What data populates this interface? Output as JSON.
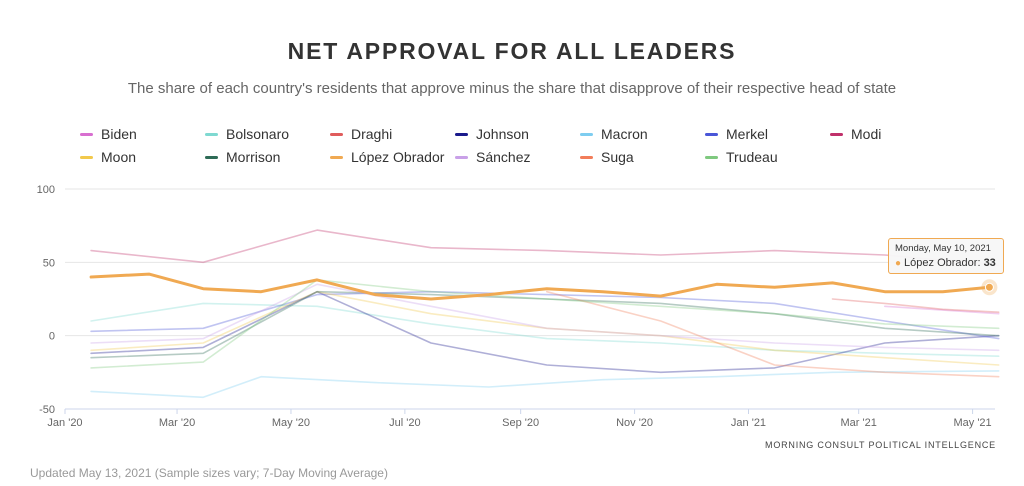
{
  "chart_data": {
    "type": "line",
    "title": "NET APPROVAL FOR ALL LEADERS",
    "subtitle": "The share of each country's residents that approve minus the share that disapprove of their respective head of state",
    "x_ticks": [
      "Jan '20",
      "Mar '20",
      "May '20",
      "Jul '20",
      "Sep '20",
      "Nov '20",
      "Jan '21",
      "Mar '21",
      "May '21"
    ],
    "x_range": [
      "2020-01-01",
      "2021-05-13"
    ],
    "y_ticks": [
      100,
      50,
      0,
      -50
    ],
    "ylim": [
      -50,
      100
    ],
    "grid": "horizontal",
    "legend_position": "top",
    "series": [
      {
        "name": "Biden",
        "color": "#d86fd0",
        "x": [
          "2020-01",
          "2020-04",
          "2020-07",
          "2020-10",
          "2021-01",
          "2021-03",
          "2021-05"
        ],
        "values": [
          null,
          null,
          null,
          null,
          null,
          20,
          15
        ]
      },
      {
        "name": "Bolsonaro",
        "color": "#7fd9d1",
        "x": [
          "2020-01",
          "2020-03",
          "2020-05",
          "2020-07",
          "2020-09",
          "2020-11",
          "2021-01",
          "2021-03",
          "2021-05"
        ],
        "values": [
          10,
          22,
          20,
          8,
          -2,
          -5,
          -10,
          -12,
          -14
        ]
      },
      {
        "name": "Draghi",
        "color": "#e05c5c",
        "x": [
          "2021-02",
          "2021-03",
          "2021-04",
          "2021-05"
        ],
        "values": [
          25,
          22,
          18,
          16
        ]
      },
      {
        "name": "Johnson",
        "color": "#1a1a8c",
        "x": [
          "2020-01",
          "2020-03",
          "2020-05",
          "2020-07",
          "2020-09",
          "2020-11",
          "2021-01",
          "2021-03",
          "2021-05"
        ],
        "values": [
          -12,
          -8,
          30,
          -5,
          -20,
          -25,
          -22,
          -5,
          0
        ]
      },
      {
        "name": "Macron",
        "color": "#7ecdf0",
        "x": [
          "2020-01",
          "2020-03",
          "2020-04",
          "2020-06",
          "2020-08",
          "2020-10",
          "2020-12",
          "2021-02",
          "2021-05"
        ],
        "values": [
          -38,
          -42,
          -28,
          -32,
          -35,
          -30,
          -28,
          -25,
          -24
        ]
      },
      {
        "name": "Merkel",
        "color": "#4a56d8",
        "x": [
          "2020-01",
          "2020-03",
          "2020-05",
          "2020-07",
          "2020-09",
          "2020-11",
          "2021-01",
          "2021-03",
          "2021-05"
        ],
        "values": [
          3,
          5,
          28,
          30,
          28,
          26,
          22,
          10,
          -2
        ]
      },
      {
        "name": "Modi",
        "color": "#c0306a",
        "x": [
          "2020-01",
          "2020-03",
          "2020-05",
          "2020-07",
          "2020-09",
          "2020-11",
          "2021-01",
          "2021-03",
          "2021-05"
        ],
        "values": [
          58,
          50,
          72,
          60,
          58,
          55,
          58,
          55,
          48
        ]
      },
      {
        "name": "Moon",
        "color": "#f2c94c",
        "x": [
          "2020-01",
          "2020-03",
          "2020-05",
          "2020-07",
          "2020-09",
          "2020-11",
          "2021-01",
          "2021-03",
          "2021-05"
        ],
        "values": [
          -10,
          -5,
          30,
          15,
          5,
          0,
          -10,
          -15,
          -20
        ]
      },
      {
        "name": "Morrison",
        "color": "#2e6b56",
        "x": [
          "2020-01",
          "2020-03",
          "2020-05",
          "2020-07",
          "2020-09",
          "2020-11",
          "2021-01",
          "2021-03",
          "2021-05"
        ],
        "values": [
          -15,
          -12,
          30,
          28,
          25,
          22,
          15,
          5,
          0
        ]
      },
      {
        "name": "López Obrador",
        "color": "#f0a952",
        "x": [
          "2020-01",
          "2020-02",
          "2020-03",
          "2020-04",
          "2020-05",
          "2020-06",
          "2020-07",
          "2020-08",
          "2020-09",
          "2020-10",
          "2020-11",
          "2020-12",
          "2021-01",
          "2021-02",
          "2021-03",
          "2021-04",
          "2021-05-10"
        ],
        "values": [
          40,
          42,
          32,
          30,
          38,
          28,
          25,
          28,
          32,
          30,
          27,
          35,
          33,
          36,
          30,
          30,
          33
        ]
      },
      {
        "name": "Sánchez",
        "color": "#c9a0e8",
        "x": [
          "2020-01",
          "2020-03",
          "2020-05",
          "2020-07",
          "2020-09",
          "2020-11",
          "2021-01",
          "2021-03",
          "2021-05"
        ],
        "values": [
          -5,
          -2,
          35,
          20,
          5,
          0,
          -5,
          -8,
          -10
        ]
      },
      {
        "name": "Suga",
        "color": "#f27d5a",
        "x": [
          "2020-09",
          "2020-11",
          "2021-01",
          "2021-03",
          "2021-05"
        ],
        "values": [
          30,
          10,
          -20,
          -25,
          -28
        ]
      },
      {
        "name": "Trudeau",
        "color": "#7fc97f",
        "x": [
          "2020-01",
          "2020-03",
          "2020-05",
          "2020-07",
          "2020-09",
          "2020-11",
          "2021-01",
          "2021-03",
          "2021-05"
        ],
        "values": [
          -22,
          -18,
          38,
          30,
          25,
          20,
          15,
          8,
          5
        ]
      }
    ],
    "tooltip": {
      "date": "Monday, May 10, 2021",
      "series": "López Obrador",
      "value": 33
    }
  },
  "credits": "MORNING CONSULT POLITICAL INTELLGENCE",
  "footnote": "Updated May 13, 2021 (Sample sizes vary; 7-Day Moving Average)"
}
